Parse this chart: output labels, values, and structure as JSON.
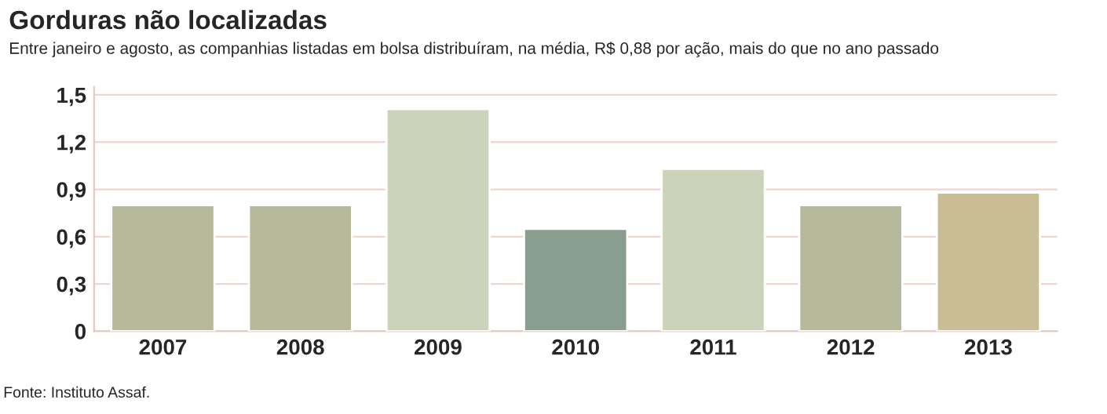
{
  "chart_data": {
    "type": "bar",
    "title": "Gorduras não localizadas",
    "subtitle": "Entre janeiro e agosto, as companhias listadas em bolsa distribuíram, na média, R$ 0,88 por ação, mais do que no ano passado",
    "categories": [
      "2007",
      "2008",
      "2009",
      "2010",
      "2011",
      "2012",
      "2013"
    ],
    "values": [
      0.8,
      0.8,
      1.41,
      0.65,
      1.03,
      0.8,
      0.88
    ],
    "colors": [
      "#b6b99c",
      "#b6b99c",
      "#cdd3bb",
      "#8a9e90",
      "#cdd3bb",
      "#b6b99c",
      "#c8bd95"
    ],
    "ylim": [
      0,
      1.55
    ],
    "yticks": [
      0,
      {
        "value": 0.3,
        "label": "0,3"
      },
      {
        "value": 0.6,
        "label": "0,6"
      },
      {
        "value": 0.9,
        "label": "0,9"
      },
      {
        "value": 1.2,
        "label": "1,2"
      },
      {
        "value": 1.5,
        "label": "1,5"
      }
    ],
    "grid": "y",
    "annotations": [
      "Fonte: Instituto Assaf."
    ]
  }
}
